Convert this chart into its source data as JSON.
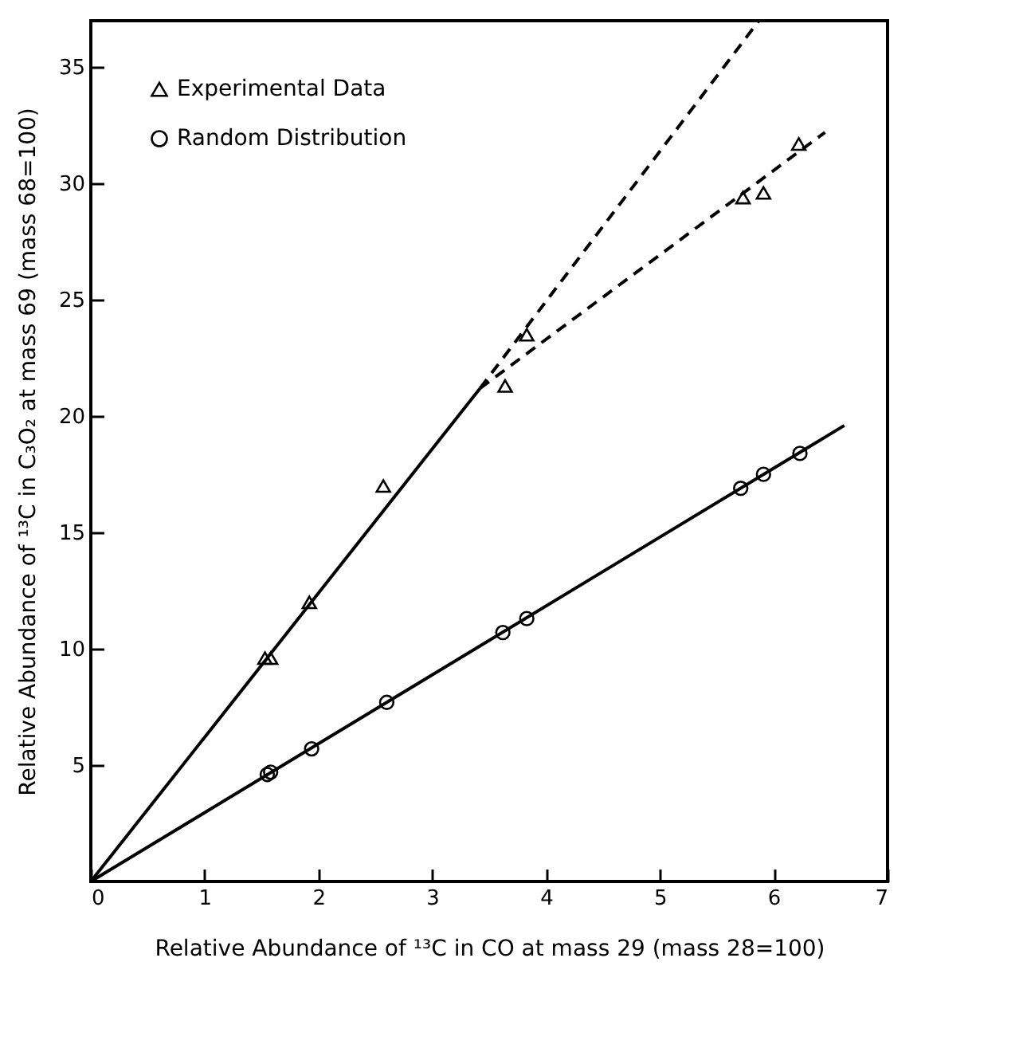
{
  "chart_data": {
    "type": "scatter",
    "xlabel": "Relative Abundance of ¹³C in CO at mass 29 (mass 28=100)",
    "ylabel": "Relative Abundance of ¹³C in C₃O₂ at mass 69 (mass 68=100)",
    "xlim": [
      0,
      7
    ],
    "xticks": [
      0,
      1,
      2,
      3,
      4,
      5,
      6,
      7
    ],
    "ylim": [
      0,
      37
    ],
    "yticks": [
      5,
      10,
      15,
      20,
      25,
      30,
      35
    ],
    "grid": false,
    "legend": "top left",
    "series": [
      {
        "type": "line",
        "color": "#000000",
        "line_style": "solid",
        "marker": "none",
        "x": [
          0,
          3.42
        ],
        "values": [
          0,
          21.2
        ]
      },
      {
        "type": "line",
        "color": "#000000",
        "line_style": "dashed",
        "marker": "none",
        "x": [
          3.42,
          5.87
        ],
        "values": [
          21.2,
          37.0
        ]
      },
      {
        "type": "line",
        "color": "#000000",
        "line_style": "dashed",
        "marker": "none",
        "x": [
          3.42,
          6.45
        ],
        "values": [
          21.2,
          32.2
        ]
      },
      {
        "type": "line",
        "color": "#000000",
        "line_style": "solid",
        "marker": "none",
        "x": [
          0,
          6.62
        ],
        "values": [
          0,
          19.6
        ]
      },
      {
        "name": "Experimental Data",
        "color": "#000000",
        "marker": "triangle",
        "x": [
          1.53,
          1.58,
          1.92,
          2.57,
          3.64,
          3.83,
          5.73,
          5.91,
          6.22
        ],
        "values": [
          9.6,
          9.6,
          12.0,
          17.0,
          21.3,
          23.5,
          29.4,
          29.6,
          31.7
        ]
      },
      {
        "name": "Random Distribution",
        "color": "#000000",
        "marker": "circle",
        "x": [
          1.55,
          1.58,
          1.94,
          2.6,
          3.62,
          3.83,
          5.71,
          5.91,
          6.23
        ],
        "values": [
          4.6,
          4.7,
          5.7,
          7.7,
          10.7,
          11.3,
          16.9,
          17.5,
          18.4
        ]
      }
    ]
  }
}
